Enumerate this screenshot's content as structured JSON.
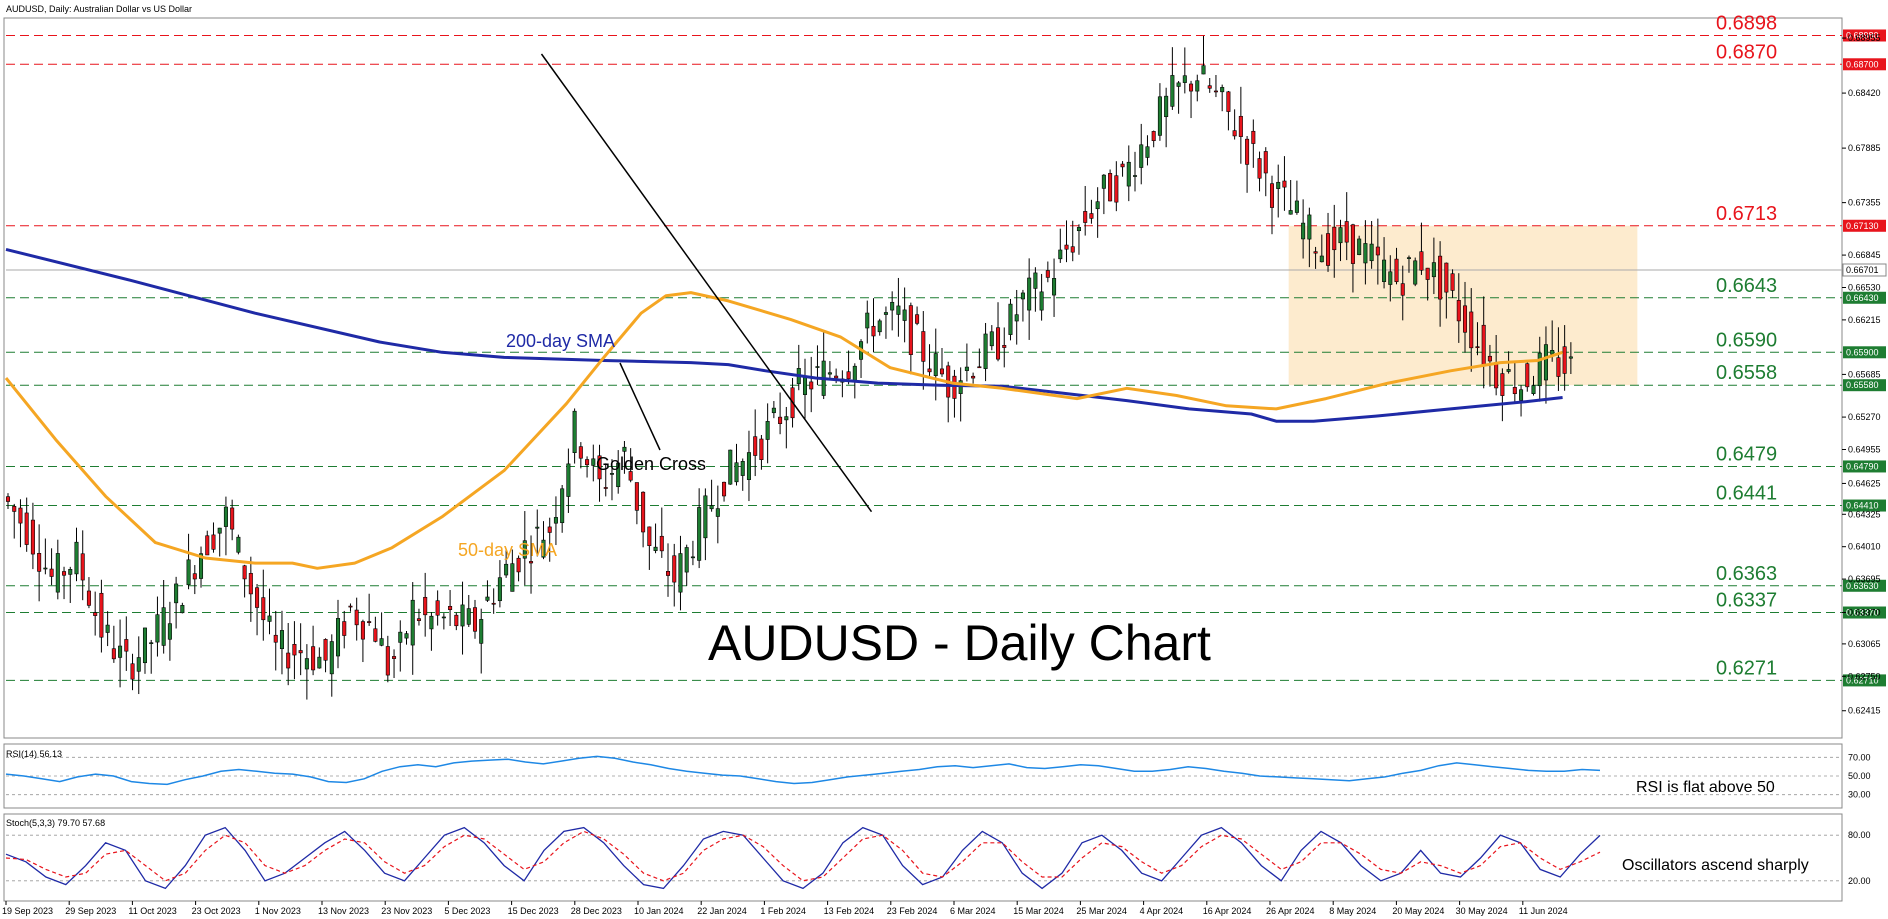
{
  "header": {
    "title": "AUDUSD, Daily:  Australian Dollar vs US Dollar"
  },
  "chart_data": {
    "type": "candlestick",
    "symbol": "AUDUSD",
    "timeframe": "Daily",
    "title": "AUDUSD - Daily Chart",
    "ylim": [
      0.6215,
      0.6915
    ],
    "y_ticks": [
      "0.68955",
      "0.68420",
      "0.67885",
      "0.67355",
      "0.66845",
      "0.66530",
      "0.66215",
      "0.65685",
      "0.65270",
      "0.64955",
      "0.64625",
      "0.64325",
      "0.64010",
      "0.63695",
      "0.63370",
      "0.63065",
      "0.62750",
      "0.62415"
    ],
    "x_ticks": [
      "19 Sep 2023",
      "29 Sep 2023",
      "11 Oct 2023",
      "23 Oct 2023",
      "1 Nov 2023",
      "13 Nov 2023",
      "23 Nov 2023",
      "5 Dec 2023",
      "15 Dec 2023",
      "28 Dec 2023",
      "10 Jan 2024",
      "22 Jan 2024",
      "1 Feb 2024",
      "13 Feb 2024",
      "23 Feb 2024",
      "6 Mar 2024",
      "15 Mar 2024",
      "25 Mar 2024",
      "4 Apr 2024",
      "16 Apr 2024",
      "26 Apr 2024",
      "8 May 2024",
      "20 May 2024",
      "30 May 2024",
      "11 Jun 2024"
    ],
    "current_price": {
      "label": "0.66701",
      "value": 0.667
    },
    "levels": [
      {
        "value": 0.6898,
        "label": "0.6898",
        "box": "0.68980",
        "kind": "resistance",
        "color": "#e8141c"
      },
      {
        "value": 0.687,
        "label": "0.6870",
        "box": "0.68700",
        "kind": "resistance",
        "color": "#e8141c"
      },
      {
        "value": 0.6713,
        "label": "0.6713",
        "box": "0.67130",
        "kind": "resistance",
        "color": "#e8141c"
      },
      {
        "value": 0.6643,
        "label": "0.6643",
        "box": "0.66430",
        "kind": "support",
        "color": "#1e7d32"
      },
      {
        "value": 0.659,
        "label": "0.6590",
        "box": "0.65900",
        "kind": "support",
        "color": "#1e7d32"
      },
      {
        "value": 0.6558,
        "label": "0.6558",
        "box": "0.65580",
        "kind": "support",
        "color": "#1e7d32"
      },
      {
        "value": 0.6479,
        "label": "0.6479",
        "box": "0.64790",
        "kind": "support",
        "color": "#1e7d32"
      },
      {
        "value": 0.6441,
        "label": "0.6441",
        "box": "0.64410",
        "kind": "support",
        "color": "#1e7d32"
      },
      {
        "value": 0.6363,
        "label": "0.6363",
        "box": "0.63630",
        "kind": "support",
        "color": "#1e7d32"
      },
      {
        "value": 0.6337,
        "label": "0.6337",
        "box": "0.63370",
        "kind": "support",
        "color": "#1e7d32"
      },
      {
        "value": 0.6271,
        "label": "0.6271",
        "box": "0.62710",
        "kind": "support",
        "color": "#1e7d32"
      }
    ],
    "range_zone": {
      "from_date": "26 Apr 2024",
      "to_date": "11 Jun 2024",
      "low": 0.6558,
      "high": 0.6713,
      "color": "#fde9c9"
    },
    "annotations": [
      {
        "id": "sma200",
        "text": "200-day SMA",
        "color": "#1f2aa6"
      },
      {
        "id": "sma50",
        "text": "50-day SMA",
        "color": "#f5a623"
      },
      {
        "id": "golden",
        "text": "Golden Cross",
        "color": "#000000"
      }
    ],
    "series": [
      {
        "name": "200-day SMA",
        "color": "#1f2aa6",
        "points": [
          [
            0,
            0.669
          ],
          [
            20,
            0.666
          ],
          [
            40,
            0.6628
          ],
          [
            60,
            0.66
          ],
          [
            70,
            0.659
          ],
          [
            80,
            0.6585
          ],
          [
            96,
            0.6582
          ],
          [
            110,
            0.658
          ],
          [
            116,
            0.6578
          ],
          [
            122,
            0.6572
          ],
          [
            130,
            0.6565
          ],
          [
            140,
            0.656
          ],
          [
            150,
            0.6558
          ],
          [
            160,
            0.6557
          ],
          [
            170,
            0.655
          ],
          [
            180,
            0.6543
          ],
          [
            190,
            0.6535
          ],
          [
            200,
            0.653
          ],
          [
            204,
            0.6523
          ],
          [
            210,
            0.6523
          ],
          [
            220,
            0.6528
          ],
          [
            232,
            0.6535
          ],
          [
            244,
            0.6542
          ],
          [
            250,
            0.6546
          ]
        ]
      },
      {
        "name": "50-day SMA",
        "color": "#f5a623",
        "points": [
          [
            0,
            0.6565
          ],
          [
            8,
            0.6505
          ],
          [
            16,
            0.645
          ],
          [
            24,
            0.6405
          ],
          [
            32,
            0.639
          ],
          [
            40,
            0.6385
          ],
          [
            46,
            0.6385
          ],
          [
            50,
            0.638
          ],
          [
            56,
            0.6385
          ],
          [
            62,
            0.64
          ],
          [
            70,
            0.643
          ],
          [
            80,
            0.6475
          ],
          [
            90,
            0.654
          ],
          [
            96,
            0.6585
          ],
          [
            102,
            0.6628
          ],
          [
            106,
            0.6645
          ],
          [
            110,
            0.6648
          ],
          [
            116,
            0.664
          ],
          [
            126,
            0.6622
          ],
          [
            134,
            0.6605
          ],
          [
            142,
            0.6575
          ],
          [
            152,
            0.656
          ],
          [
            160,
            0.6555
          ],
          [
            166,
            0.655
          ],
          [
            172,
            0.6545
          ],
          [
            180,
            0.6555
          ],
          [
            188,
            0.6548
          ],
          [
            196,
            0.6538
          ],
          [
            204,
            0.6535
          ],
          [
            212,
            0.6545
          ],
          [
            222,
            0.656
          ],
          [
            232,
            0.6572
          ],
          [
            240,
            0.658
          ],
          [
            246,
            0.6582
          ],
          [
            250,
            0.659
          ]
        ]
      }
    ],
    "trendline": {
      "from": [
        86,
        0.688
      ],
      "to": [
        139,
        0.6435
      ]
    },
    "candle_paths": [
      [
        0,
        0.645
      ],
      [
        4,
        0.642
      ],
      [
        8,
        0.637
      ],
      [
        12,
        0.639
      ],
      [
        16,
        0.632
      ],
      [
        20,
        0.6285
      ],
      [
        24,
        0.631
      ],
      [
        28,
        0.635
      ],
      [
        32,
        0.64
      ],
      [
        36,
        0.643
      ],
      [
        40,
        0.636
      ],
      [
        44,
        0.63
      ],
      [
        48,
        0.63
      ],
      [
        52,
        0.629
      ],
      [
        56,
        0.634
      ],
      [
        60,
        0.632
      ],
      [
        62,
        0.6285
      ],
      [
        64,
        0.63
      ],
      [
        66,
        0.634
      ],
      [
        68,
        0.633
      ],
      [
        72,
        0.633
      ],
      [
        76,
        0.6325
      ],
      [
        80,
        0.637
      ],
      [
        84,
        0.64
      ],
      [
        88,
        0.642
      ],
      [
        92,
        0.6515
      ],
      [
        96,
        0.646
      ],
      [
        100,
        0.649
      ],
      [
        104,
        0.64
      ],
      [
        108,
        0.637
      ],
      [
        112,
        0.642
      ],
      [
        116,
        0.647
      ],
      [
        120,
        0.649
      ],
      [
        124,
        0.652
      ],
      [
        128,
        0.6555
      ],
      [
        132,
        0.657
      ],
      [
        136,
        0.658
      ],
      [
        140,
        0.662
      ],
      [
        144,
        0.6625
      ],
      [
        148,
        0.659
      ],
      [
        152,
        0.656
      ],
      [
        156,
        0.658
      ],
      [
        160,
        0.66
      ],
      [
        164,
        0.664
      ],
      [
        168,
        0.666
      ],
      [
        172,
        0.67
      ],
      [
        176,
        0.674
      ],
      [
        180,
        0.676
      ],
      [
        184,
        0.68
      ],
      [
        188,
        0.684
      ],
      [
        192,
        0.686
      ],
      [
        196,
        0.683
      ],
      [
        200,
        0.679
      ],
      [
        204,
        0.675
      ],
      [
        208,
        0.672
      ],
      [
        212,
        0.669
      ],
      [
        216,
        0.67
      ],
      [
        220,
        0.668
      ],
      [
        224,
        0.666
      ],
      [
        228,
        0.668
      ],
      [
        232,
        0.665
      ],
      [
        236,
        0.661
      ],
      [
        240,
        0.657
      ],
      [
        244,
        0.656
      ],
      [
        248,
        0.658
      ],
      [
        252,
        0.6575
      ]
    ]
  },
  "rsi": {
    "label": "RSI(14) 56.13",
    "levels": [
      "70.00",
      "50.00",
      "30.00"
    ],
    "note": "RSI is flat above 50",
    "color": "#1e88e5",
    "values": [
      52,
      50,
      47,
      44,
      49,
      52,
      50,
      44,
      42,
      41,
      46,
      50,
      55,
      57,
      55,
      53,
      52,
      49,
      44,
      43,
      47,
      55,
      60,
      62,
      60,
      64,
      66,
      67,
      68,
      65,
      63,
      66,
      69,
      71,
      69,
      65,
      62,
      58,
      55,
      53,
      51,
      50,
      47,
      44,
      42,
      43,
      46,
      49,
      51,
      53,
      55,
      57,
      60,
      61,
      59,
      61,
      63,
      59,
      58,
      60,
      62,
      61,
      58,
      55,
      55,
      57,
      60,
      58,
      55,
      53,
      50,
      49,
      48,
      47,
      46,
      45,
      47,
      49,
      53,
      56,
      61,
      64,
      62,
      60,
      58,
      56,
      55,
      55,
      57,
      56
    ]
  },
  "stoch": {
    "label": "Stoch(5,3,3) 79.70 57.68",
    "levels": [
      "80.00",
      "20.00"
    ],
    "note": "Oscillators ascend sharply",
    "k_color": "#1f2aa6",
    "d_color": "#e8141c",
    "k_values": [
      55,
      45,
      25,
      15,
      40,
      70,
      60,
      20,
      10,
      40,
      80,
      90,
      60,
      20,
      30,
      50,
      70,
      85,
      60,
      30,
      20,
      50,
      80,
      90,
      70,
      40,
      20,
      60,
      85,
      90,
      70,
      40,
      15,
      10,
      40,
      75,
      85,
      80,
      50,
      20,
      10,
      30,
      70,
      90,
      80,
      40,
      15,
      25,
      60,
      85,
      70,
      30,
      10,
      30,
      70,
      80,
      60,
      30,
      20,
      50,
      80,
      90,
      70,
      40,
      20,
      60,
      85,
      70,
      40,
      20,
      30,
      60,
      30,
      25,
      50,
      80,
      70,
      35,
      25,
      55,
      79.7
    ],
    "d_values": [
      50,
      48,
      35,
      25,
      30,
      55,
      60,
      40,
      20,
      30,
      60,
      80,
      70,
      40,
      30,
      40,
      60,
      75,
      70,
      45,
      30,
      40,
      65,
      80,
      75,
      55,
      35,
      45,
      70,
      85,
      75,
      55,
      30,
      20,
      30,
      60,
      75,
      80,
      65,
      40,
      20,
      25,
      50,
      75,
      80,
      60,
      30,
      25,
      45,
      70,
      70,
      45,
      25,
      25,
      50,
      70,
      65,
      45,
      30,
      40,
      65,
      80,
      75,
      55,
      35,
      45,
      70,
      70,
      55,
      35,
      30,
      45,
      40,
      30,
      40,
      65,
      70,
      50,
      35,
      45,
      57.68
    ]
  }
}
